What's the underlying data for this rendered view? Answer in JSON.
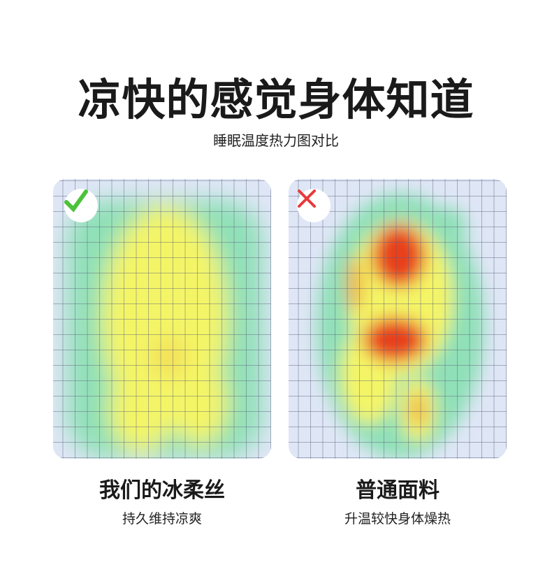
{
  "header": {
    "title": "凉快的感觉身体知道",
    "subtitle": "睡眠温度热力图对比"
  },
  "panels": [
    {
      "icon": "checkmark-icon",
      "icon_color": "#4cc23a",
      "title": "我们的冰柔丝",
      "subtitle": "持久维持凉爽"
    },
    {
      "icon": "cross-icon",
      "icon_color": "#e8393a",
      "title": "普通面料",
      "subtitle": "升温较快身体燥热"
    }
  ],
  "colors": {
    "cool": "#dfe6f6",
    "green": "#8fe0b8",
    "yellow": "#f4f566",
    "orange": "#f2b23c",
    "red": "#e8401f"
  }
}
